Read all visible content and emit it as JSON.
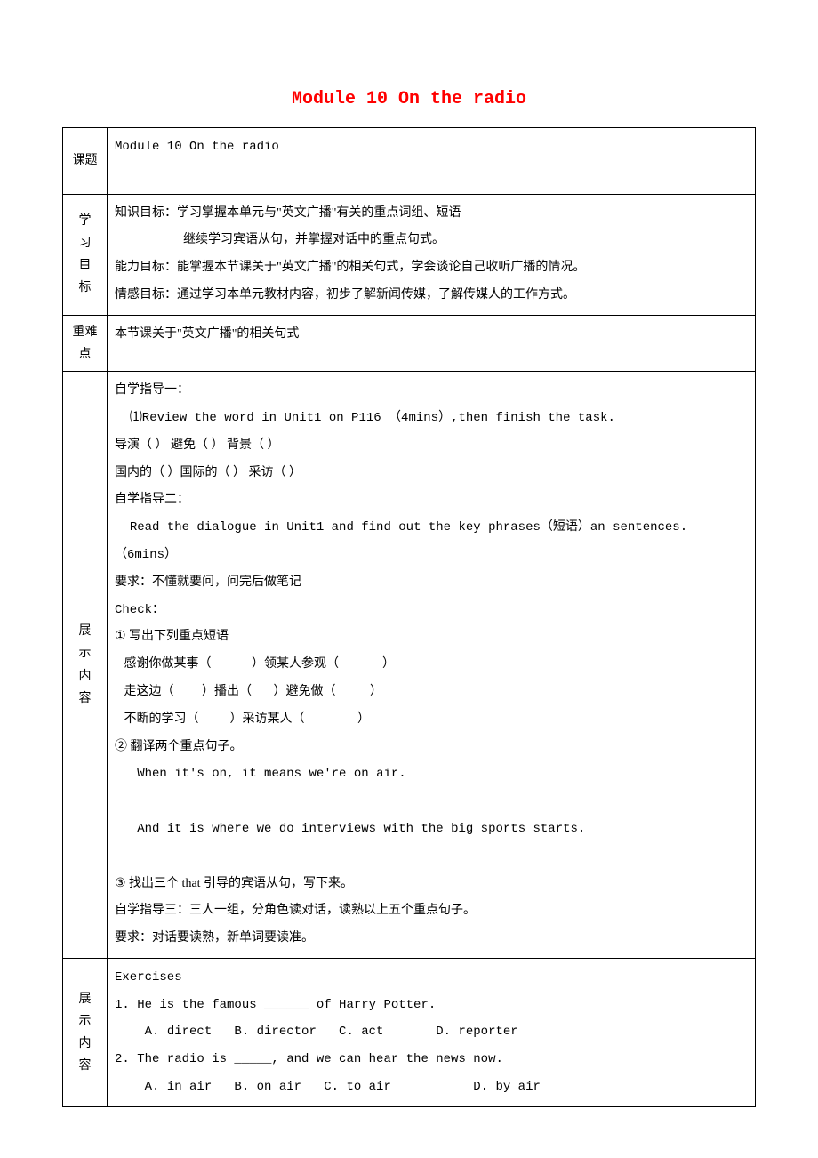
{
  "title": "Module 10 On the radio",
  "rows": {
    "topic": {
      "header": "课题",
      "content": "Module 10 On the radio"
    },
    "goals": {
      "header": "学习目标",
      "knowledge_label": "知识目标：",
      "knowledge_line1": "学习掌握本单元与\"英文广播\"有关的重点词组、短语",
      "knowledge_line2": "继续学习宾语从句，并掌握对话中的重点句式。",
      "ability_label": "能力目标：",
      "ability_line1": "能掌握本节课关于\"英文广播\"的相关句式，学会谈论自己收听广播的情况。",
      "emotion_label": "情感目标：",
      "emotion_line1": "通过学习本单元教材内容，初步了解新闻传媒，了解传媒人的工作方式。"
    },
    "difficulty": {
      "header": "重难点",
      "content": "本节课关于\"英文广播\"的相关句式"
    },
    "content1": {
      "header": "展示内容",
      "line1": "自学指导一：",
      "line2": "  ⑴Review the word in Unit1 on P116 （4mins）,then finish the task.",
      "line3": "导演（        ）   避免（     ）  背景（      ）",
      "line4": "国内的（       ）国际的（         ）  采访（        ）",
      "line5": "自学指导二：",
      "line6": "  Read the dialogue in Unit1 and find out the key phrases（短语）an sentences.（6mins）",
      "line7": "要求：不懂就要问，问完后做笔记",
      "line8": "Check：",
      "line9": "①  写出下列重点短语",
      "line10": "   感谢你做某事（             ）领某人参观（              ）",
      "line11": "   走这边（         ）播出（       ）避免做（           ）",
      "line12": "   不断的学习（          ）采访某人（                 ）",
      "line13": "②  翻译两个重点句子。",
      "line14": "   When it's on, it means we're on air.",
      "line15": "   And it is where we do interviews with the big sports starts.",
      "line16": "③  找出三个 that 引导的宾语从句，写下来。",
      "line17": "自学指导三：三人一组，分角色读对话，读熟以上五个重点句子。",
      "line18": "要求：对话要读熟，新单词要读准。"
    },
    "content2": {
      "header": "展示内容",
      "line1": "Exercises",
      "line2": "1. He is the famous ______ of Harry Potter.",
      "line3": "    A. direct   B. director   C. act       D. reporter",
      "line4": "2. The radio is _____, and we can hear the news now.",
      "line5": "    A. in air   B. on air   C. to air           D. by air"
    }
  },
  "colors": {
    "title_color": "#ff0000",
    "text_color": "#000000",
    "border_color": "#000000",
    "background_color": "#ffffff"
  },
  "typography": {
    "title_fontsize": 20,
    "body_fontsize": 14,
    "font_family": "SimSun"
  }
}
